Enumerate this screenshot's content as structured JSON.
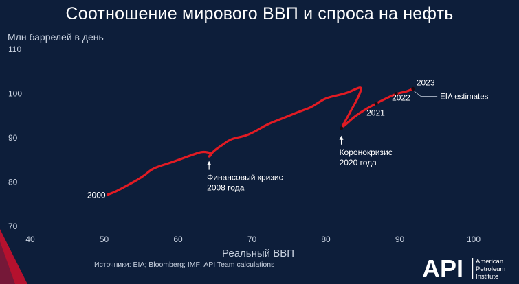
{
  "title": "Соотношение мирового ВВП и спроса на нефть",
  "source": "Источники: EIA; Bloomberg; IMF; API Team calculations",
  "logo": {
    "mark": "API",
    "text_line1": "American",
    "text_line2": "Petroleum",
    "text_line3": "Institute"
  },
  "colors": {
    "background": "#0d1e3a",
    "line": "#e21b23",
    "text": "#ffffff",
    "muted_text": "#c9d2e0",
    "accent_corner": "#c8102e"
  },
  "chart_data": {
    "type": "line",
    "title": "Соотношение мирового ВВП и спроса на нефть",
    "xlabel": "Реальный ВВП",
    "ylabel": "Млн баррелей в день",
    "xlim": [
      40,
      100
    ],
    "ylim": [
      70,
      110
    ],
    "x_ticks": [
      40,
      50,
      60,
      70,
      80,
      90,
      100
    ],
    "y_ticks": [
      70,
      80,
      90,
      100,
      110
    ],
    "grid": false,
    "series": [
      {
        "x": [
          50.5,
          51.5,
          52.5,
          53.5,
          54.5,
          55.5,
          56.5,
          57.8,
          59,
          60.5,
          62,
          63.2,
          64.2,
          64.6,
          64.1,
          64.5,
          65,
          66,
          67,
          68,
          69,
          70,
          71,
          72,
          73.5,
          75,
          76.5,
          78,
          79,
          80,
          81.5,
          82.5,
          83.5,
          84.2,
          84.9,
          84.4,
          83.5,
          82.8,
          82.1,
          83,
          84,
          85.5,
          86.8,
          88,
          89.5,
          91,
          91.8
        ],
        "y": [
          77.2,
          77.8,
          78.7,
          79.6,
          80.5,
          81.6,
          83,
          83.8,
          84.4,
          85.3,
          86.2,
          86.9,
          86.7,
          86.3,
          85.6,
          86.4,
          87.3,
          88.4,
          89.6,
          90.1,
          90.4,
          91.1,
          92,
          93,
          94,
          95,
          96,
          96.9,
          98,
          99,
          99.6,
          100,
          100.6,
          101.2,
          101.5,
          99.2,
          96.5,
          94.3,
          92.2,
          93.5,
          95,
          96.6,
          97.8,
          98.8,
          100,
          100.5,
          101.1
        ]
      }
    ],
    "point_labels": [
      {
        "text": "2000",
        "x": 50.5,
        "y": 77.2
      },
      {
        "text": "2021",
        "x": 86.8,
        "y": 97.8
      },
      {
        "text": "2022",
        "x": 89.5,
        "y": 100
      },
      {
        "text": "2023",
        "x": 91.8,
        "y": 101.1
      }
    ],
    "markers": [
      {
        "x": 82.1,
        "y": 92.2
      },
      {
        "x": 86.8,
        "y": 97.8
      },
      {
        "x": 89.5,
        "y": 100
      },
      {
        "x": 91.8,
        "y": 101.1
      }
    ],
    "annotations": [
      {
        "line1": "Финансовый кризис",
        "line2": "2008 года",
        "x": 64.2,
        "y": 86.5
      },
      {
        "line1": "Коронокризис",
        "line2": "2020 года",
        "x": 82.1,
        "y": 92.2
      }
    ],
    "eia_label": "EIA estimates"
  }
}
